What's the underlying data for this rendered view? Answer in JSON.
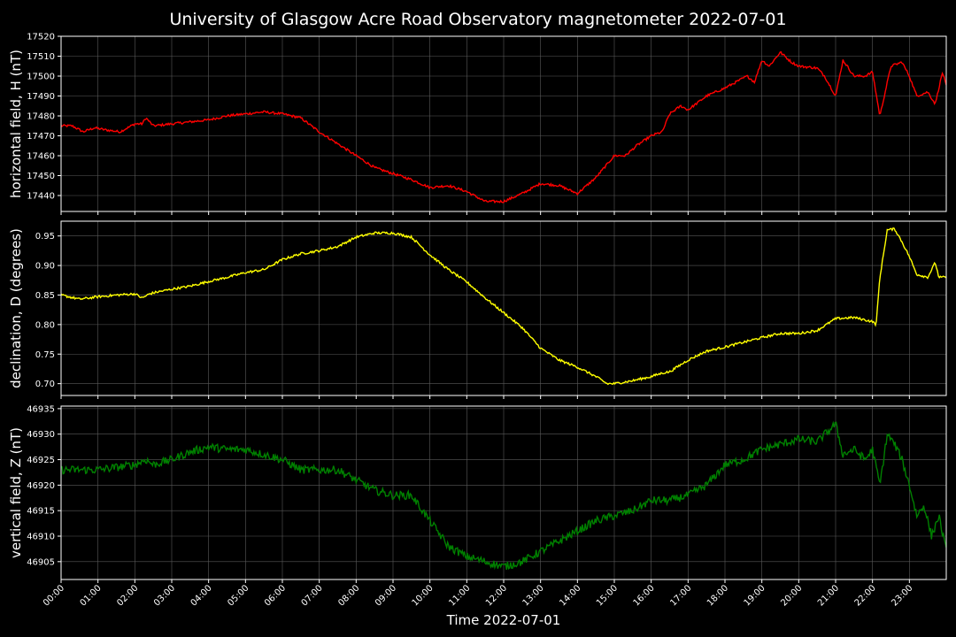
{
  "title": "University of Glasgow Acre Road Observatory magnetometer 2022-07-01",
  "xlabel": "Time 2022-07-01",
  "colors": {
    "background": "#000000",
    "grid": "#5a5a5a",
    "axes": "#ffffff"
  },
  "x_ticks": [
    "00:00",
    "01:00",
    "02:00",
    "03:00",
    "04:00",
    "05:00",
    "06:00",
    "07:00",
    "08:00",
    "09:00",
    "10:00",
    "11:00",
    "12:00",
    "13:00",
    "14:00",
    "15:00",
    "16:00",
    "17:00",
    "18:00",
    "19:00",
    "20:00",
    "21:00",
    "22:00",
    "23:00"
  ],
  "chart_data": [
    {
      "type": "line",
      "ylabel": "horizontal field, H (nT)",
      "color": "#ff0000",
      "xlim": [
        0,
        24
      ],
      "ylim": [
        17432,
        17520
      ],
      "yticks": [
        17440,
        17450,
        17460,
        17470,
        17480,
        17490,
        17500,
        17510,
        17520
      ],
      "noise": 0.6,
      "x": [
        0,
        0.3,
        0.6,
        0.9,
        1.2,
        1.6,
        2.0,
        2.2,
        2.3,
        2.5,
        3.0,
        3.5,
        4.0,
        4.5,
        5.0,
        5.5,
        6.0,
        6.5,
        7.0,
        7.5,
        8.0,
        8.5,
        9.0,
        9.5,
        10.0,
        10.5,
        11.0,
        11.5,
        12.0,
        12.5,
        13.0,
        13.5,
        14.0,
        14.5,
        15.0,
        15.3,
        15.6,
        16.0,
        16.3,
        16.5,
        16.8,
        17.0,
        17.5,
        18.0,
        18.3,
        18.6,
        18.8,
        19.0,
        19.2,
        19.5,
        19.8,
        20.0,
        20.5,
        20.7,
        21.0,
        21.2,
        21.5,
        21.8,
        22.0,
        22.2,
        22.5,
        22.8,
        23.0,
        23.2,
        23.5,
        23.7,
        23.9,
        24.0
      ],
      "y": [
        17475,
        17475,
        17472,
        17474,
        17473,
        17472,
        17476,
        17476,
        17479,
        17475,
        17476,
        17477,
        17478,
        17480,
        17481,
        17482,
        17481,
        17479,
        17472,
        17466,
        17460,
        17454,
        17451,
        17448,
        17444,
        17445,
        17442,
        17437,
        17437,
        17441,
        17446,
        17445,
        17441,
        17449,
        17460,
        17460,
        17465,
        17470,
        17472,
        17481,
        17485,
        17483,
        17490,
        17494,
        17497,
        17500,
        17497,
        17508,
        17505,
        17512,
        17507,
        17505,
        17504,
        17500,
        17490,
        17508,
        17500,
        17500,
        17502,
        17480,
        17505,
        17507,
        17500,
        17490,
        17492,
        17486,
        17502,
        17495
      ]
    },
    {
      "type": "line",
      "ylabel": "declination, D (degrees)",
      "color": "#ffff00",
      "xlim": [
        0,
        24
      ],
      "ylim": [
        0.68,
        0.975
      ],
      "yticks": [
        0.7,
        0.75,
        0.8,
        0.85,
        0.9,
        0.95
      ],
      "noise": 0.002,
      "x": [
        0,
        0.5,
        1.0,
        1.5,
        2.0,
        2.2,
        2.4,
        2.6,
        3.0,
        3.5,
        4.0,
        4.5,
        5.0,
        5.5,
        6.0,
        6.5,
        7.0,
        7.5,
        8.0,
        8.5,
        9.0,
        9.5,
        10.0,
        10.5,
        11.0,
        11.5,
        12.0,
        12.5,
        13.0,
        13.5,
        14.0,
        14.5,
        14.8,
        15.0,
        15.5,
        16.0,
        16.3,
        16.5,
        17.0,
        17.5,
        18.0,
        18.5,
        19.0,
        19.5,
        20.0,
        20.5,
        21.0,
        21.5,
        22.0,
        22.1,
        22.2,
        22.4,
        22.6,
        22.8,
        23.0,
        23.2,
        23.5,
        23.7,
        23.8,
        24.0
      ],
      "y": [
        0.85,
        0.843,
        0.847,
        0.85,
        0.852,
        0.845,
        0.852,
        0.855,
        0.86,
        0.865,
        0.873,
        0.88,
        0.888,
        0.893,
        0.91,
        0.92,
        0.925,
        0.932,
        0.948,
        0.955,
        0.955,
        0.948,
        0.918,
        0.893,
        0.872,
        0.845,
        0.82,
        0.795,
        0.76,
        0.74,
        0.728,
        0.712,
        0.7,
        0.7,
        0.705,
        0.712,
        0.718,
        0.72,
        0.74,
        0.755,
        0.762,
        0.77,
        0.778,
        0.785,
        0.785,
        0.79,
        0.81,
        0.812,
        0.805,
        0.8,
        0.88,
        0.96,
        0.962,
        0.94,
        0.915,
        0.885,
        0.88,
        0.905,
        0.88,
        0.88
      ]
    },
    {
      "type": "line",
      "ylabel": "vertical field, Z (nT)",
      "color": "#008000",
      "xlim": [
        0,
        24
      ],
      "ylim": [
        46901.5,
        46935.5
      ],
      "yticks": [
        46905,
        46910,
        46915,
        46920,
        46925,
        46930,
        46935
      ],
      "noise": 0.8,
      "x": [
        0,
        0.5,
        1.0,
        1.5,
        2.0,
        2.3,
        2.5,
        3.0,
        3.5,
        4.0,
        4.5,
        5.0,
        5.5,
        6.0,
        6.5,
        7.0,
        7.5,
        8.0,
        8.5,
        9.0,
        9.5,
        10.0,
        10.5,
        11.0,
        11.5,
        12.0,
        12.5,
        13.0,
        13.5,
        14.0,
        14.5,
        15.0,
        15.5,
        16.0,
        16.5,
        17.0,
        17.5,
        18.0,
        18.5,
        19.0,
        19.5,
        20.0,
        20.5,
        21.0,
        21.2,
        21.5,
        21.8,
        22.0,
        22.2,
        22.4,
        22.6,
        22.8,
        23.0,
        23.2,
        23.4,
        23.6,
        23.8,
        24.0
      ],
      "y": [
        46923,
        46923,
        46923,
        46923.5,
        46924,
        46925,
        46924,
        46925,
        46926.5,
        46927.5,
        46927,
        46927,
        46926,
        46925,
        46923,
        46923,
        46923,
        46921,
        46919,
        46918,
        46918,
        46913,
        46908,
        46906,
        46905,
        46904,
        46905,
        46907,
        46909,
        46911,
        46913,
        46914,
        46915,
        46917,
        46917,
        46918,
        46920,
        46924,
        46925,
        46927,
        46928,
        46929,
        46928.5,
        46932,
        46926,
        46927,
        46925,
        46927,
        46920,
        46930,
        46928,
        46925,
        46920,
        46914,
        46916,
        46910,
        46914,
        46907
      ]
    }
  ]
}
